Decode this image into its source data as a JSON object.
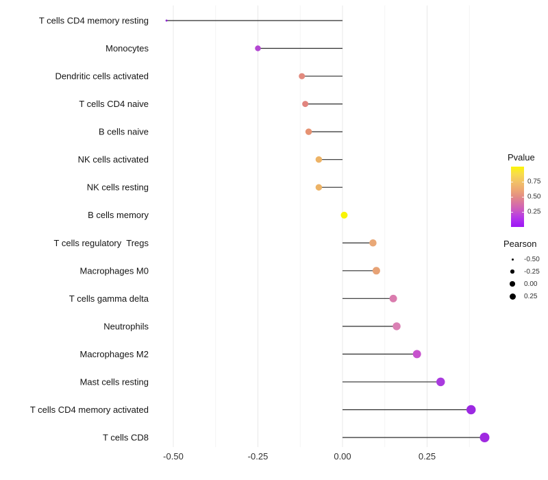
{
  "chart_data": {
    "type": "scatter",
    "variant": "horizontal-lollipop",
    "title": "",
    "xlabel": "",
    "ylabel": "",
    "grid": "vertical-major-and-minor",
    "x_ticks": [
      -0.5,
      -0.25,
      0.0,
      0.25
    ],
    "x_tick_labels": [
      "-0.50",
      "-0.25",
      "0.00",
      "0.25"
    ],
    "x_minor_ticks": [
      -0.375,
      -0.125,
      0.125,
      0.375
    ],
    "xlim": [
      -0.567,
      0.46
    ],
    "stem_origin": 0,
    "rows": [
      {
        "category": "T cells CD4 memory resting",
        "pearson": -0.52,
        "color": "#8e2ad0",
        "diameter": 3
      },
      {
        "category": "Monocytes",
        "pearson": -0.25,
        "color": "#b347d2",
        "diameter": 8.5
      },
      {
        "category": "Dendritic cells activated",
        "pearson": -0.12,
        "color": "#e28a7e",
        "diameter": 9
      },
      {
        "category": "T cells CD4 naive",
        "pearson": -0.11,
        "color": "#e1847e",
        "diameter": 9
      },
      {
        "category": "B cells naive",
        "pearson": -0.1,
        "color": "#e69272",
        "diameter": 9.5
      },
      {
        "category": "NK cells activated",
        "pearson": -0.07,
        "color": "#edb366",
        "diameter": 9.5
      },
      {
        "category": "NK cells resting",
        "pearson": -0.07,
        "color": "#edb366",
        "diameter": 9.5
      },
      {
        "category": "B cells memory",
        "pearson": 0.005,
        "color": "#f8f406",
        "diameter": 10
      },
      {
        "category": "T cells regulatory  Tregs",
        "pearson": 0.09,
        "color": "#e9a877",
        "diameter": 10.5
      },
      {
        "category": "Macrophages M0",
        "pearson": 0.1,
        "color": "#e7a275",
        "diameter": 11
      },
      {
        "category": "T cells gamma delta",
        "pearson": 0.15,
        "color": "#da7cae",
        "diameter": 11
      },
      {
        "category": "Neutrophils",
        "pearson": 0.16,
        "color": "#da80b4",
        "diameter": 11.5
      },
      {
        "category": "Macrophages M2",
        "pearson": 0.22,
        "color": "#c752cd",
        "diameter": 12
      },
      {
        "category": "Mast cells resting",
        "pearson": 0.29,
        "color": "#a93ade",
        "diameter": 12.5
      },
      {
        "category": "T cells CD4 memory activated",
        "pearson": 0.38,
        "color": "#9c29e2",
        "diameter": 13.5
      },
      {
        "category": "T cells CD8",
        "pearson": 0.42,
        "color": "#9f2ae0",
        "diameter": 14
      }
    ],
    "legend_pvalue": {
      "title": "Pvalue",
      "tick_labels": [
        "0.75",
        "0.50",
        "0.25"
      ],
      "tick_values": [
        0.75,
        0.5,
        0.25
      ],
      "bar_range": [
        0,
        1
      ],
      "gradient_stops": [
        {
          "pos": 0,
          "color": "#fcf507"
        },
        {
          "pos": 12,
          "color": "#f8dc4c"
        },
        {
          "pos": 25,
          "color": "#f2c266"
        },
        {
          "pos": 38,
          "color": "#eda873"
        },
        {
          "pos": 50,
          "color": "#e38c85"
        },
        {
          "pos": 62,
          "color": "#d76fa6"
        },
        {
          "pos": 72,
          "color": "#cb5ac0"
        },
        {
          "pos": 82,
          "color": "#b93ee2"
        },
        {
          "pos": 92,
          "color": "#a826f2"
        },
        {
          "pos": 100,
          "color": "#9d18f3"
        }
      ]
    },
    "legend_pearson": {
      "title": "Pearson",
      "items": [
        {
          "label": "-0.50",
          "diameter": 3
        },
        {
          "label": "-0.25",
          "diameter": 5.5
        },
        {
          "label": "0.00",
          "diameter": 7.5
        },
        {
          "label": "0.25",
          "diameter": 9
        }
      ]
    },
    "style_colors": {
      "grid_major": "#e8e8e8",
      "grid_minor": "#f4f4f4",
      "stem": "#2b2b2b",
      "axis_text": "#303030",
      "category_text": "#141414"
    }
  }
}
